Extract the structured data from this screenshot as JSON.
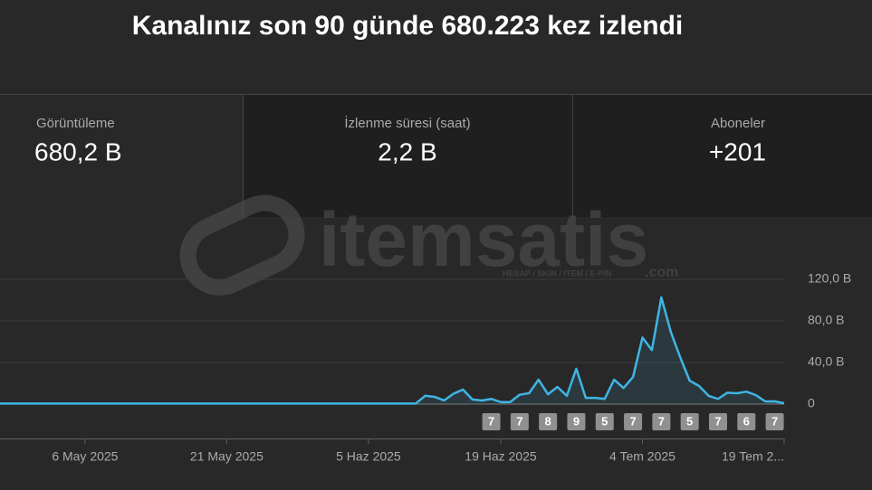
{
  "header": {
    "title": "Kanalınız son 90 günde 680.223 kez izlendi"
  },
  "stats": [
    {
      "label": "Görüntüleme",
      "value": "680,2 B"
    },
    {
      "label": "İzlenme süresi (saat)",
      "value": "2,2 B"
    },
    {
      "label": "Aboneler",
      "value": "+201"
    }
  ],
  "watermark": {
    "name": "itemsatis",
    "tagline": "HESAP / SKIN / ITEM / E-PIN",
    "suffix": ".com"
  },
  "chart_data": {
    "type": "line",
    "x": [
      0,
      1,
      2,
      3,
      4,
      5,
      6,
      7,
      8,
      9,
      10,
      11,
      12,
      13,
      14,
      15,
      16,
      17,
      18,
      19,
      20,
      21,
      22,
      23,
      24,
      25,
      26,
      27,
      28,
      29,
      30,
      31,
      32,
      33,
      34,
      35,
      36,
      37,
      38,
      39,
      40,
      41,
      42,
      43,
      44,
      45,
      46,
      47,
      48,
      49,
      50,
      51,
      52,
      53,
      54,
      55,
      56,
      57,
      58,
      59,
      60,
      61,
      62,
      63,
      64,
      65,
      66,
      67,
      68,
      69,
      70,
      71,
      72,
      73,
      74,
      75,
      76,
      77,
      78,
      79,
      80,
      81,
      82,
      83
    ],
    "series": [
      {
        "color": "#3fb5e5",
        "values": [
          0.5,
          0.5,
          0.5,
          0.5,
          0.5,
          0.5,
          0.5,
          0.5,
          0.5,
          0.5,
          0.5,
          0.5,
          0.5,
          0.5,
          0.5,
          0.5,
          0.5,
          0.5,
          0.5,
          0.5,
          0.5,
          0.5,
          0.5,
          0.5,
          0.5,
          0.5,
          0.5,
          0.5,
          0.5,
          0.5,
          0.5,
          0.5,
          0.5,
          0.5,
          0.5,
          0.5,
          0.5,
          0.5,
          0.5,
          0.5,
          0.5,
          0.5,
          0.5,
          0.5,
          0.5,
          8,
          7,
          3.5,
          10,
          14,
          4.5,
          3.5,
          5,
          2,
          2,
          9,
          10.5,
          23.5,
          9.5,
          16.5,
          8,
          34,
          6,
          6,
          5,
          23.5,
          15.5,
          26,
          64,
          52,
          102.6,
          69.5,
          45,
          22.5,
          17.4,
          8,
          5,
          11,
          10.4,
          12,
          8.7,
          2.6,
          2.6,
          0.9
        ]
      }
    ],
    "xlim": [
      0,
      83
    ],
    "xticks": [
      {
        "value": 9,
        "label": "6 May 2025"
      },
      {
        "value": 24,
        "label": "21 May 2025"
      },
      {
        "value": 39,
        "label": "5 Haz 2025"
      },
      {
        "value": 53,
        "label": "19 Haz 2025"
      },
      {
        "value": 68,
        "label": "4 Tem 2025"
      },
      {
        "value": 83,
        "label": "19 Tem 2..."
      }
    ],
    "ylim": [
      0,
      120
    ],
    "yticks": [
      {
        "value": 0,
        "label": "0"
      },
      {
        "value": 40,
        "label": "40,0 B"
      },
      {
        "value": 80,
        "label": "80,0 B"
      },
      {
        "value": 120,
        "label": "120,0 B"
      }
    ],
    "grid": true,
    "markers": {
      "x": [
        52,
        55,
        58,
        61,
        64,
        67,
        70,
        73,
        76,
        79,
        82
      ],
      "values": [
        7,
        7,
        8,
        9,
        5,
        7,
        7,
        5,
        7,
        6,
        7
      ]
    }
  }
}
